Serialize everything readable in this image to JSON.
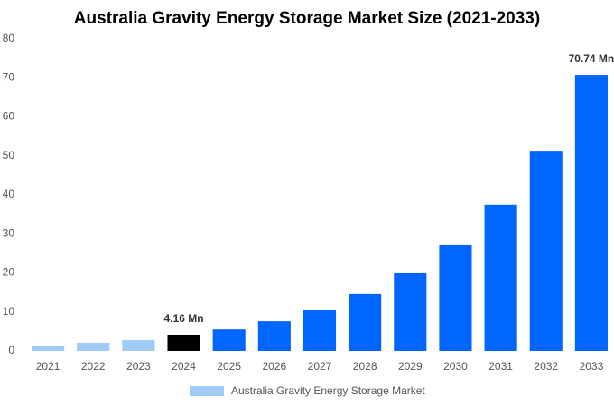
{
  "chart_data": {
    "type": "bar",
    "title": "Australia Gravity Energy Storage Market Size (2021-2033)",
    "categories": [
      "2021",
      "2022",
      "2023",
      "2024",
      "2025",
      "2026",
      "2027",
      "2028",
      "2029",
      "2030",
      "2031",
      "2032",
      "2033"
    ],
    "series": [
      {
        "name": "Australia Gravity Energy Storage Market",
        "color": "#a0cbf9",
        "values": [
          1.4,
          2.1,
          2.8,
          4.16,
          5.5,
          7.6,
          10.4,
          14.6,
          19.9,
          27.3,
          37.5,
          51.3,
          70.74
        ],
        "value_labels": [
          null,
          null,
          null,
          "4.16 Mn",
          null,
          null,
          null,
          null,
          null,
          null,
          null,
          null,
          "70.74 Mn"
        ],
        "colors": [
          "#a0cbf9",
          "#a0cbf9",
          "#a0cbf9",
          "#000000",
          "#0066ff",
          "#0066ff",
          "#0066ff",
          "#0066ff",
          "#0066ff",
          "#0066ff",
          "#0066ff",
          "#0066ff",
          "#0066ff"
        ]
      }
    ],
    "ylim": [
      0,
      80
    ],
    "yticks": [
      0,
      10,
      20,
      30,
      40,
      50,
      60,
      70,
      80
    ],
    "grid": false
  }
}
